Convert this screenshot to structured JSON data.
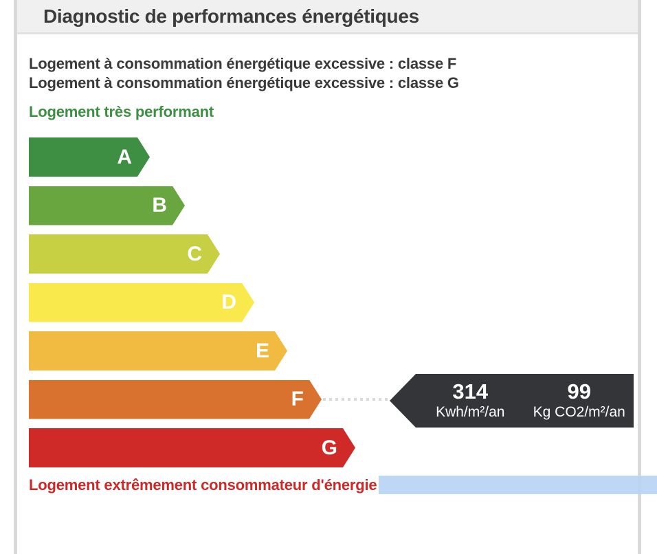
{
  "header": {
    "title": "Diagnostic de performances énergétiques"
  },
  "notices": [
    "Logement à consommation énergétique excessive : classe F",
    "Logement à consommation énergétique excessive : classe G"
  ],
  "chart_data": {
    "type": "bar",
    "title": "Diagnostic de performances énergétiques",
    "categories": [
      "A",
      "B",
      "C",
      "D",
      "E",
      "F",
      "G"
    ],
    "values": [
      176,
      227,
      278,
      328,
      376,
      426,
      475
    ],
    "colors": [
      "#3e8e44",
      "#6aa63f",
      "#c7d043",
      "#fae94d",
      "#f1ba41",
      "#d8722e",
      "#cf2a28"
    ],
    "orientation": "horizontal",
    "grid": false,
    "legend_position": "none",
    "best_label": "Logement très performant",
    "worst_label": "Logement extrêmement consommateur d'énergie",
    "selected_class": "F",
    "selected_values": {
      "energy": "314",
      "energy_unit": "Kwh/m²/an",
      "co2": "99",
      "co2_unit": "Kg CO2/m²/an"
    }
  },
  "colors": {
    "best_label_green": "#3e8e44",
    "worst_label_red": "#cc2a28",
    "badge_background": "#343539",
    "selection_highlight": "#b7d3f3",
    "header_background": "#f0f0f0",
    "border_gray": "#d9d9d9",
    "text_dark": "#3a3a3a"
  }
}
